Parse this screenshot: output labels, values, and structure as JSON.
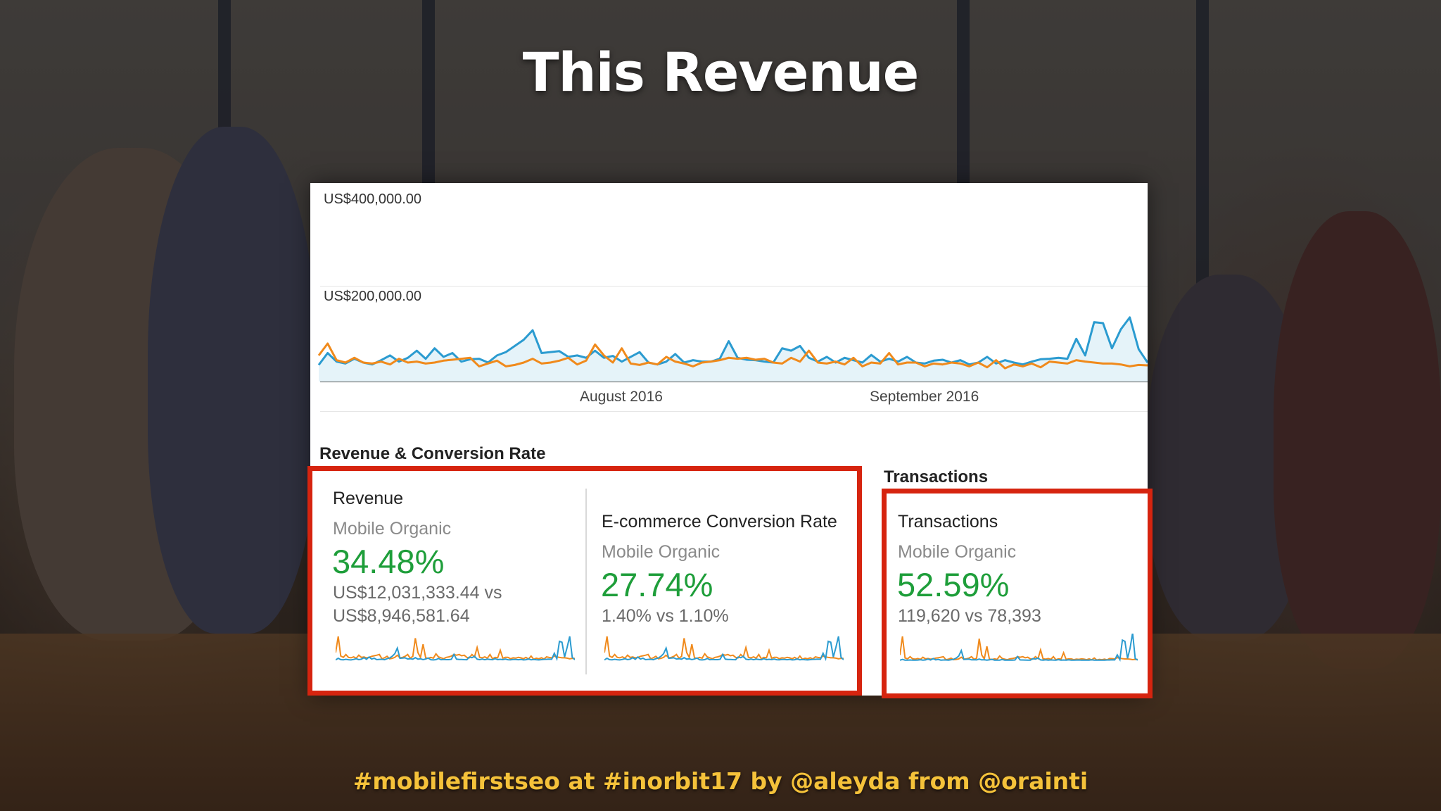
{
  "slide": {
    "title": "This Revenue",
    "footer": "#mobilefirstseo at #inorbit17 by @aleyda from @orainti"
  },
  "colors": {
    "title": "#ffffff",
    "footer": "#f5c23a",
    "series_primary": "#2b9bd0",
    "series_secondary": "#f08a1c",
    "positive_change": "#1e9e3a",
    "highlight_box": "#d6240f"
  },
  "chart_data": {
    "type": "line",
    "title": "",
    "xlabel": "",
    "ylabel": "",
    "yticks": [
      "US$400,000.00",
      "US$200,000.00"
    ],
    "ylim": [
      0,
      400000
    ],
    "xticks": [
      "August 2016",
      "September 2016"
    ],
    "grid": true,
    "series": [
      {
        "color": "#2b9bd0",
        "fill": true,
        "values": [
          35000,
          60000,
          42000,
          38000,
          48000,
          40000,
          36000,
          45000,
          55000,
          42000,
          50000,
          65000,
          48000,
          70000,
          52000,
          60000,
          42000,
          47000,
          48000,
          40000,
          55000,
          62000,
          75000,
          88000,
          108000,
          60000,
          62000,
          64000,
          52000,
          55000,
          50000,
          65000,
          50000,
          54000,
          42000,
          52000,
          62000,
          40000,
          36000,
          42000,
          58000,
          40000,
          45000,
          42000,
          42000,
          48000,
          85000,
          50000,
          46000,
          45000,
          42000,
          40000,
          70000,
          65000,
          75000,
          50000,
          42000,
          52000,
          40000,
          50000,
          45000,
          40000,
          56000,
          42000,
          48000,
          42000,
          52000,
          40000,
          38000,
          44000,
          46000,
          40000,
          45000,
          36000,
          40000,
          52000,
          38000,
          45000,
          40000,
          36000,
          42000,
          47000,
          48000,
          50000,
          48000,
          90000,
          55000,
          125000,
          123000,
          70000,
          110000,
          135000,
          68000,
          40000
        ]
      },
      {
        "color": "#f08a1c",
        "fill": false,
        "values": [
          55000,
          80000,
          45000,
          40000,
          50000,
          40000,
          38000,
          42000,
          36000,
          48000,
          40000,
          42000,
          38000,
          40000,
          44000,
          46000,
          48000,
          50000,
          32000,
          38000,
          44000,
          32000,
          35000,
          40000,
          48000,
          38000,
          40000,
          44000,
          50000,
          36000,
          44000,
          78000,
          55000,
          40000,
          70000,
          38000,
          35000,
          40000,
          36000,
          52000,
          42000,
          38000,
          32000,
          40000,
          42000,
          45000,
          50000,
          48000,
          50000,
          46000,
          48000,
          40000,
          38000,
          50000,
          42000,
          65000,
          40000,
          38000,
          42000,
          36000,
          50000,
          32000,
          40000,
          38000,
          60000,
          36000,
          40000,
          40000,
          32000,
          38000,
          36000,
          40000,
          38000,
          32000,
          40000,
          30000,
          45000,
          28000,
          36000,
          32000,
          38000,
          30000,
          42000,
          40000,
          38000,
          45000,
          42000,
          40000,
          38000,
          38000,
          36000,
          32000,
          35000,
          34000
        ]
      }
    ]
  },
  "summary": {
    "section_title": "Revenue & Conversion Rate",
    "transactions_section_title": "Transactions",
    "metrics": [
      {
        "title": "Revenue",
        "segment": "Mobile Organic",
        "change": "34.48%",
        "comparison_line1": "US$12,031,333.44 vs",
        "comparison_line2": "US$8,946,581.64"
      },
      {
        "title": "E-commerce Conversion Rate",
        "segment": "Mobile Organic",
        "change": "27.74%",
        "comparison_line1": "1.40% vs 1.10%",
        "comparison_line2": ""
      },
      {
        "title": "Transactions",
        "segment": "Mobile Organic",
        "change": "52.59%",
        "comparison_line1": "119,620 vs 78,393",
        "comparison_line2": ""
      }
    ]
  }
}
